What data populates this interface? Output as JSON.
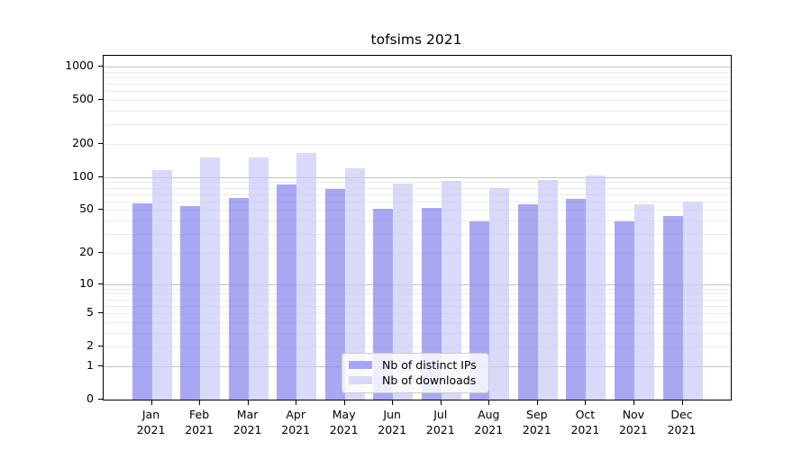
{
  "chart_data": {
    "type": "bar",
    "title": "tofsims 2021",
    "categories": [
      "Jan 2021",
      "Feb 2021",
      "Mar 2021",
      "Apr 2021",
      "May 2021",
      "Jun 2021",
      "Jul 2021",
      "Aug 2021",
      "Sep 2021",
      "Oct 2021",
      "Nov 2021",
      "Dec 2021"
    ],
    "series": [
      {
        "name": "Nb of distinct IPs",
        "legend_color": "#a7a7f1",
        "bar_color": "rgba(131,131,236,0.7)",
        "values": [
          58,
          54,
          65,
          85,
          78,
          51,
          52,
          39,
          57,
          63,
          39,
          44
        ]
      },
      {
        "name": "Nb of downloads",
        "legend_color": "#d9d9f8",
        "bar_color": "rgba(201,201,246,0.7)",
        "values": [
          116,
          150,
          151,
          166,
          120,
          88,
          93,
          79,
          94,
          103,
          56,
          60
        ]
      }
    ],
    "xlabel": "",
    "ylabel": "",
    "yscale": "log1p",
    "ylim": [
      0,
      1250
    ],
    "yticks": [
      0,
      1,
      2,
      5,
      10,
      20,
      50,
      100,
      200,
      500,
      1000
    ],
    "grid": {
      "major": [
        1,
        10,
        100,
        1000
      ],
      "minor": [
        2,
        3,
        4,
        5,
        6,
        7,
        8,
        9,
        20,
        30,
        40,
        50,
        60,
        70,
        80,
        90,
        200,
        300,
        400,
        500,
        600,
        700,
        800,
        900
      ]
    },
    "legend_position": "lower center"
  }
}
